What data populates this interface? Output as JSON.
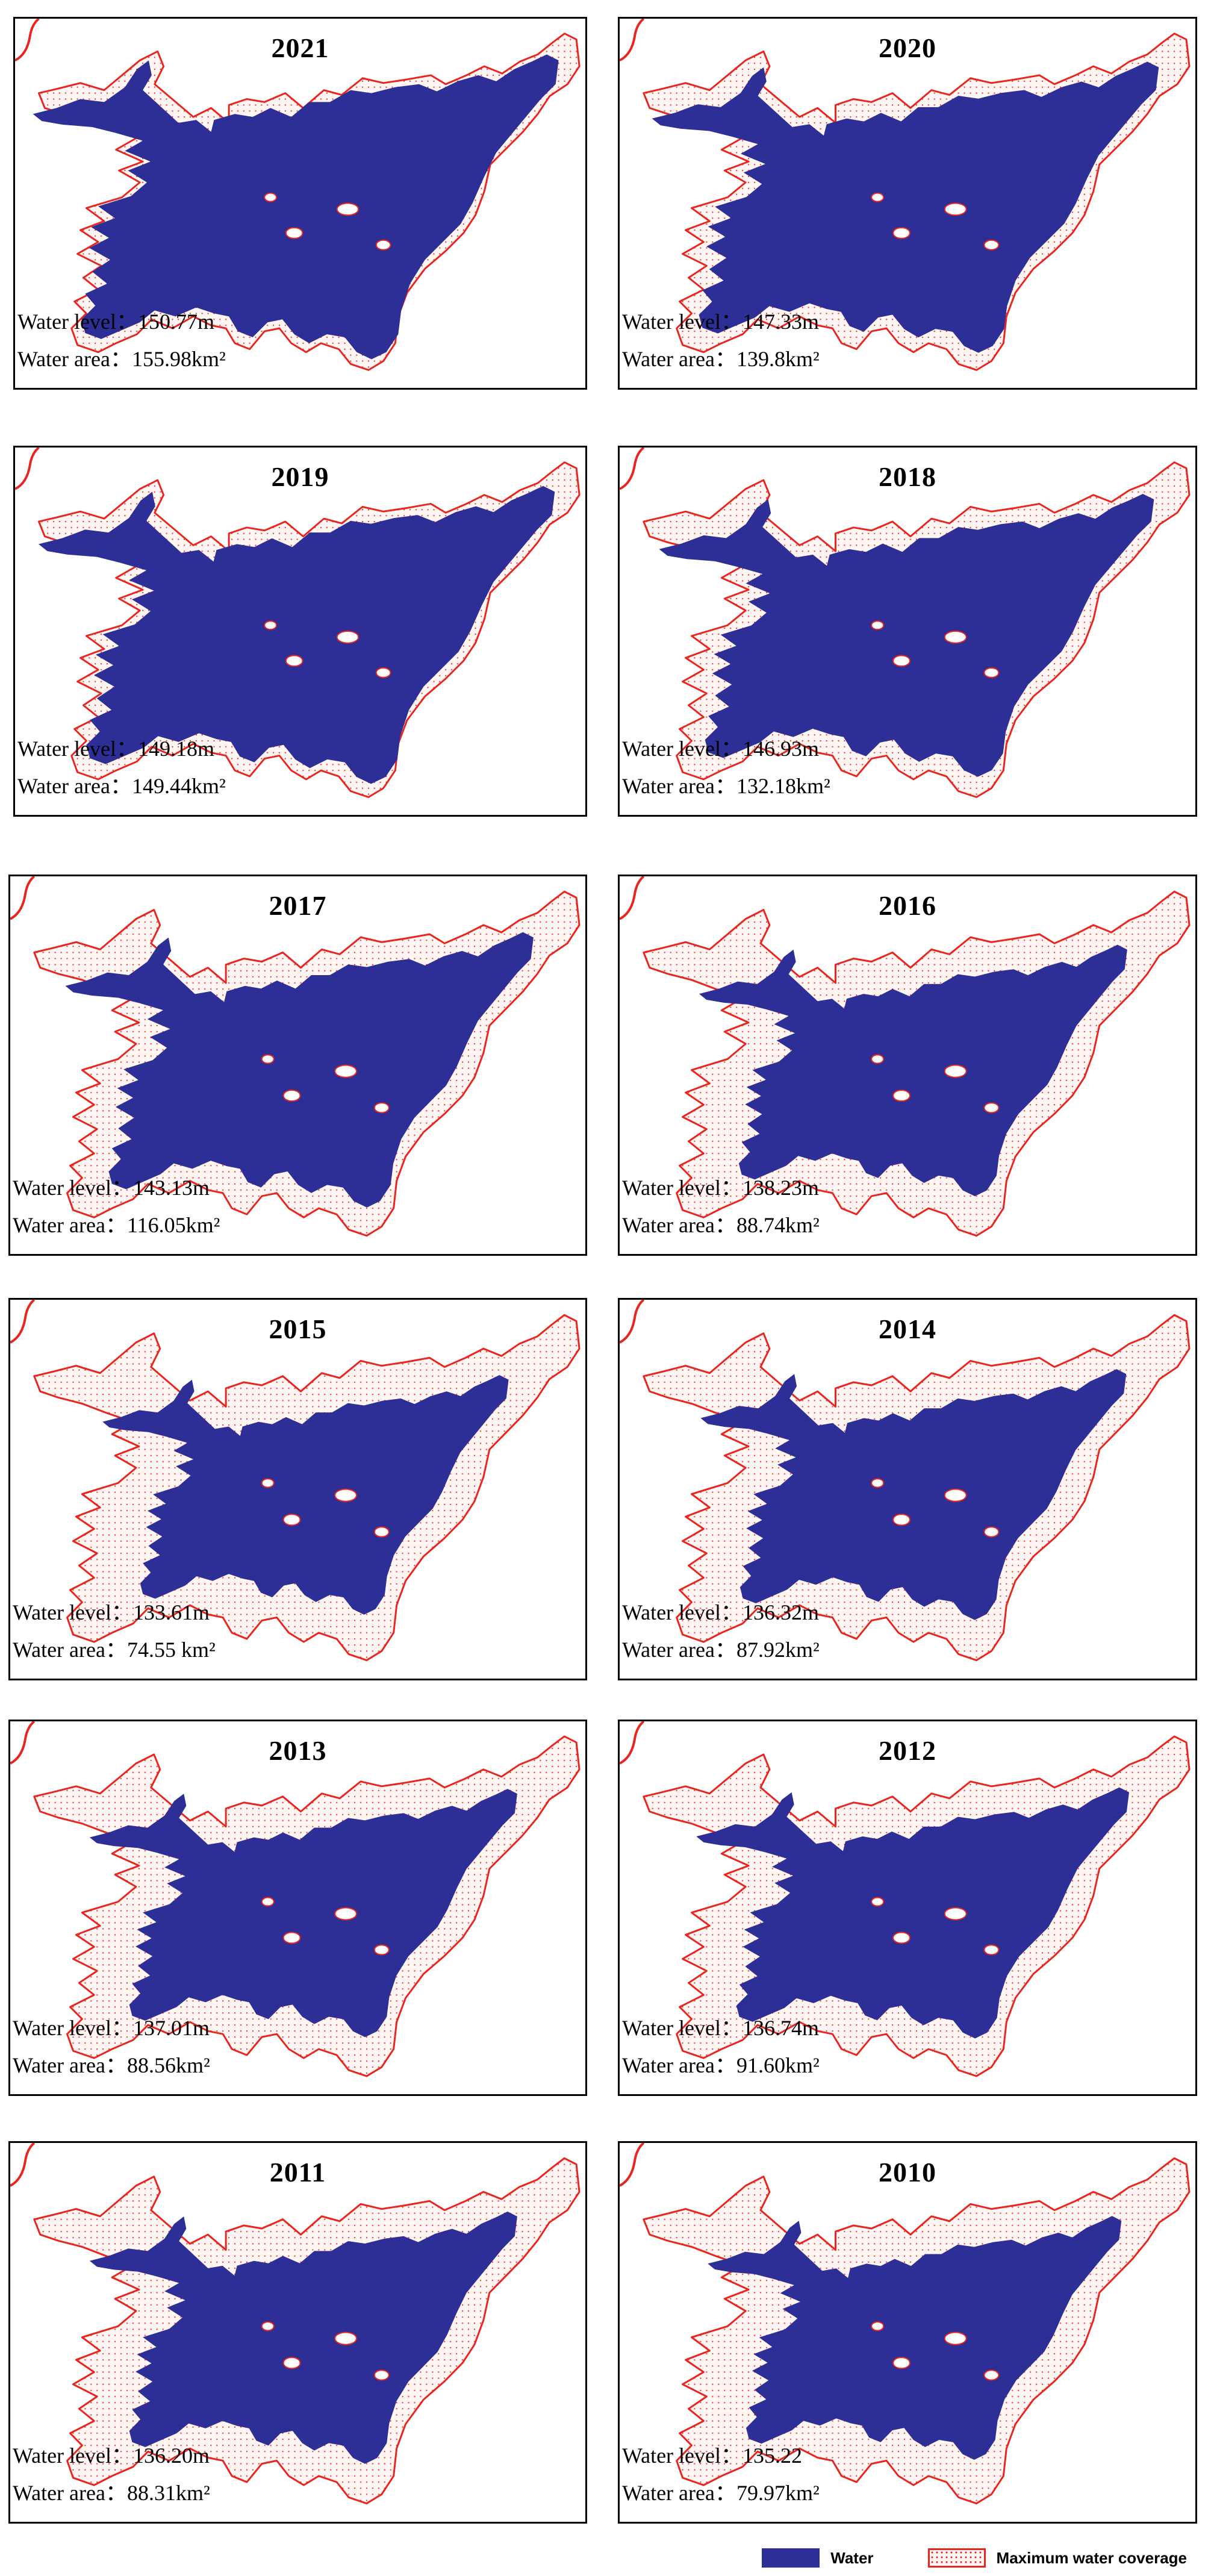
{
  "panels": [
    {
      "year": "2021",
      "level_label": "Water level：",
      "level": "150.77m",
      "area_label": "Water area：",
      "area": "155.98km²",
      "fill": 1.0
    },
    {
      "year": "2020",
      "level_label": "Water level：",
      "level": "147.33m",
      "area_label": "Water area：",
      "area": "139.8km²",
      "fill": 0.9
    },
    {
      "year": "2019",
      "level_label": "Water level：",
      "level": "149.18m",
      "area_label": "Water area：",
      "area": "149.44km²",
      "fill": 0.96
    },
    {
      "year": "2018",
      "level_label": "Water level：",
      "level": "146.93m",
      "area_label": "Water area：",
      "area": "132.18km²",
      "fill": 0.85
    },
    {
      "year": "2017",
      "level_label": "Water level：",
      "level": "143.13m",
      "area_label": "Water area：",
      "area": "116.05km²",
      "fill": 0.74
    },
    {
      "year": "2016",
      "level_label": "Water level：",
      "level": "138.23m",
      "area_label": "Water area：",
      "area": "88.74km²",
      "fill": 0.57
    },
    {
      "year": "2015",
      "level_label": "Water level：",
      "level": "133.61m",
      "area_label": "Water area：",
      "area": "74.55 km²",
      "fill": 0.48
    },
    {
      "year": "2014",
      "level_label": "Water level：",
      "level": "136.32m",
      "area_label": "Water area：",
      "area": "87.92km²",
      "fill": 0.56
    },
    {
      "year": "2013",
      "level_label": "Water level：",
      "level": "137.01m",
      "area_label": "Water area：",
      "area": "88.56km²",
      "fill": 0.57
    },
    {
      "year": "2012",
      "level_label": "Water level：",
      "level": "136.74m",
      "area_label": "Water area：",
      "area": "91.60km²",
      "fill": 0.59
    },
    {
      "year": "2011",
      "level_label": "Water level：",
      "level": "136.20m",
      "area_label": "Water area：",
      "area": "88.31km²",
      "fill": 0.57
    },
    {
      "year": "2010",
      "level_label": "Water level：",
      "level": "135.22",
      "area_label": "Water area：",
      "area": "79.97km²",
      "fill": 0.51
    }
  ],
  "legend": {
    "water_label": "Water",
    "max_label": "Maximum water coverage"
  },
  "colors": {
    "water": "#2e2f96",
    "max_outline": "#e8261f",
    "max_fill": "#fff5f3"
  }
}
